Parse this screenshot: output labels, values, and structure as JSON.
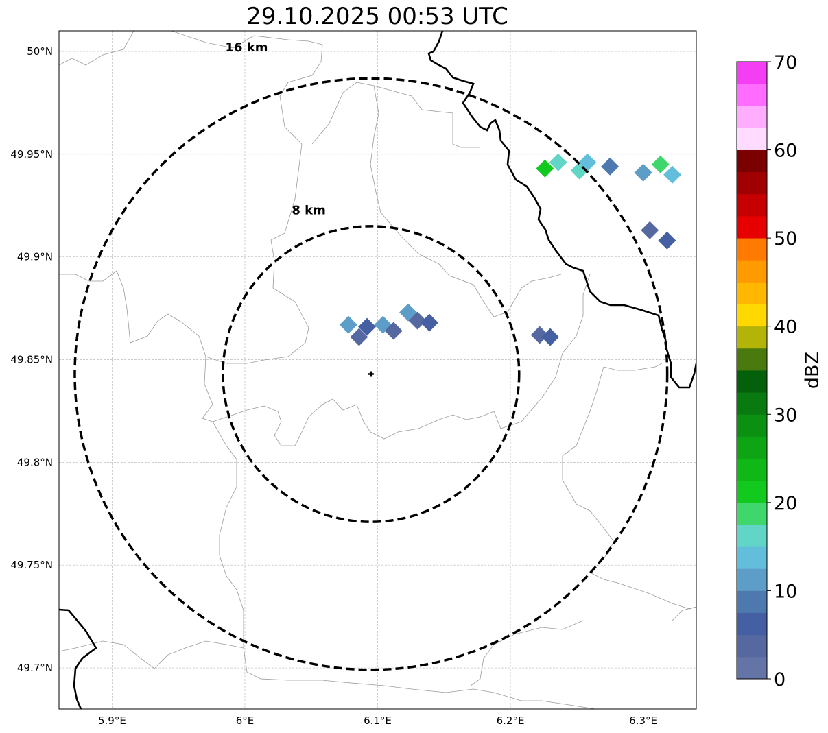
{
  "title": "29.10.2025 00:53 UTC",
  "map": {
    "lon_range": [
      5.86,
      6.34
    ],
    "lat_range": [
      49.68,
      50.01
    ],
    "lon_ticks": [
      {
        "value": 5.9,
        "label": "5.9°E"
      },
      {
        "value": 6.0,
        "label": "6°E"
      },
      {
        "value": 6.1,
        "label": "6.1°E"
      },
      {
        "value": 6.2,
        "label": "6.2°E"
      },
      {
        "value": 6.3,
        "label": "6.3°E"
      }
    ],
    "lat_ticks": [
      {
        "value": 50.0,
        "label": "50°N"
      },
      {
        "value": 49.95,
        "label": "49.95°N"
      },
      {
        "value": 49.9,
        "label": "49.9°N"
      },
      {
        "value": 49.85,
        "label": "49.85°N"
      },
      {
        "value": 49.8,
        "label": "49.8°N"
      },
      {
        "value": 49.75,
        "label": "49.75°N"
      },
      {
        "value": 49.7,
        "label": "49.7°N"
      }
    ],
    "grid": true,
    "radar_site": {
      "lon": 6.095,
      "lat": 49.843
    },
    "range_rings": [
      {
        "radius_km": 8,
        "label": "8 km"
      },
      {
        "radius_km": 16,
        "label": "16 km"
      }
    ],
    "radar_cells": [
      {
        "lon": 6.086,
        "lat": 49.861,
        "dbz": 3
      },
      {
        "lon": 6.092,
        "lat": 49.866,
        "dbz": 5
      },
      {
        "lon": 6.078,
        "lat": 49.867,
        "dbz": 10
      },
      {
        "lon": 6.104,
        "lat": 49.867,
        "dbz": 12
      },
      {
        "lon": 6.112,
        "lat": 49.864,
        "dbz": 4
      },
      {
        "lon": 6.123,
        "lat": 49.873,
        "dbz": 11
      },
      {
        "lon": 6.13,
        "lat": 49.869,
        "dbz": 4
      },
      {
        "lon": 6.139,
        "lat": 49.868,
        "dbz": 6
      },
      {
        "lon": 6.222,
        "lat": 49.862,
        "dbz": 4
      },
      {
        "lon": 6.23,
        "lat": 49.861,
        "dbz": 5
      },
      {
        "lon": 6.226,
        "lat": 49.943,
        "dbz": 22
      },
      {
        "lon": 6.236,
        "lat": 49.946,
        "dbz": 15
      },
      {
        "lon": 6.252,
        "lat": 49.942,
        "dbz": 16
      },
      {
        "lon": 6.258,
        "lat": 49.946,
        "dbz": 13
      },
      {
        "lon": 6.275,
        "lat": 49.944,
        "dbz": 8
      },
      {
        "lon": 6.3,
        "lat": 49.941,
        "dbz": 12
      },
      {
        "lon": 6.313,
        "lat": 49.945,
        "dbz": 19
      },
      {
        "lon": 6.322,
        "lat": 49.94,
        "dbz": 14
      },
      {
        "lon": 6.305,
        "lat": 49.913,
        "dbz": 4
      },
      {
        "lon": 6.318,
        "lat": 49.908,
        "dbz": 5
      }
    ]
  },
  "colorbar": {
    "label": "dBZ",
    "min": 0,
    "max": 70,
    "ticks": [
      "0",
      "10",
      "20",
      "30",
      "40",
      "50",
      "60",
      "70"
    ],
    "colors": [
      "#6474a6",
      "#55689f",
      "#4460a3",
      "#4d79af",
      "#5c9ec8",
      "#63bedb",
      "#62d6c6",
      "#3fd76b",
      "#12c91e",
      "#0fb817",
      "#0da514",
      "#0b9012",
      "#097a10",
      "#05600c",
      "#4a7a0e",
      "#b3b308",
      "#ffd800",
      "#ffb700",
      "#ff9a00",
      "#ff7a00",
      "#e60000",
      "#c60000",
      "#a10000",
      "#7b0000",
      "#ffdcff",
      "#ffaeff",
      "#ff6cff",
      "#f43ef4"
    ]
  }
}
